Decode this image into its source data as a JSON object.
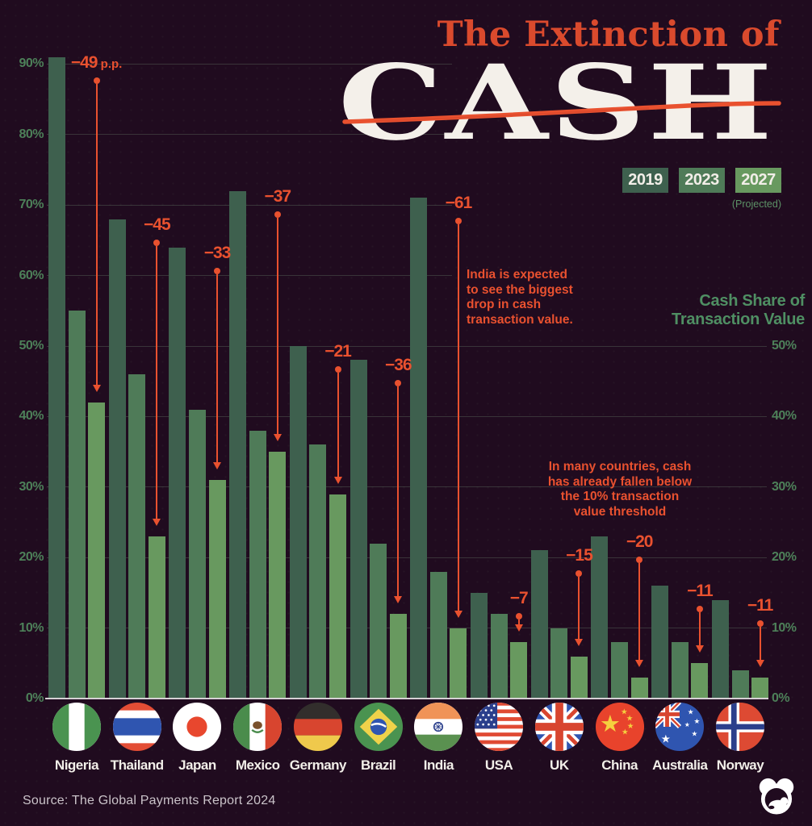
{
  "title": {
    "kicker": "The Extinction of",
    "big_word": "CASH"
  },
  "legend": {
    "years": [
      "2019",
      "2023",
      "2027"
    ],
    "colors": [
      "#3e604e",
      "#4f7b58",
      "#68995f"
    ],
    "projected_label": "(Projected)"
  },
  "axis": {
    "right_title": "Cash Share of\nTransaction Value",
    "left_ticks": [
      "90%",
      "80%",
      "70%",
      "60%",
      "50%",
      "40%",
      "30%",
      "20%",
      "10%",
      "0%"
    ],
    "right_ticks": [
      "50%",
      "40%",
      "30%",
      "20%",
      "10%",
      "0%"
    ]
  },
  "notes": {
    "india": "India is expected\nto see the biggest\ndrop in cash\ntransaction value.",
    "threshold": "In many countries, cash\nhas already fallen below\nthe 10% transaction\nvalue threshold"
  },
  "chart_data": {
    "type": "bar",
    "title": "The Extinction of Cash",
    "ylabel": "Cash Share of Transaction Value",
    "ylim": [
      0,
      100
    ],
    "unit": "%",
    "grid": "horizontal",
    "legend_position": "top-right",
    "categories": [
      "Nigeria",
      "Thailand",
      "Japan",
      "Mexico",
      "Germany",
      "Brazil",
      "India",
      "USA",
      "UK",
      "China",
      "Australia",
      "Norway"
    ],
    "series": [
      {
        "name": "2019",
        "values": [
          91,
          68,
          64,
          72,
          50,
          48,
          71,
          15,
          21,
          23,
          16,
          14
        ]
      },
      {
        "name": "2023",
        "values": [
          55,
          46,
          41,
          38,
          36,
          22,
          18,
          12,
          10,
          8,
          8,
          4
        ]
      },
      {
        "name": "2027 (Projected)",
        "values": [
          42,
          23,
          31,
          35,
          29,
          12,
          10,
          8,
          6,
          3,
          5,
          3
        ]
      }
    ],
    "drop_labels": [
      "−49 p.p.",
      "−45",
      "−33",
      "−37",
      "−21",
      "−36",
      "−61",
      "−7",
      "−15",
      "−20",
      "−11",
      "−11"
    ]
  },
  "source": "Source: The Global Payments Report 2024"
}
